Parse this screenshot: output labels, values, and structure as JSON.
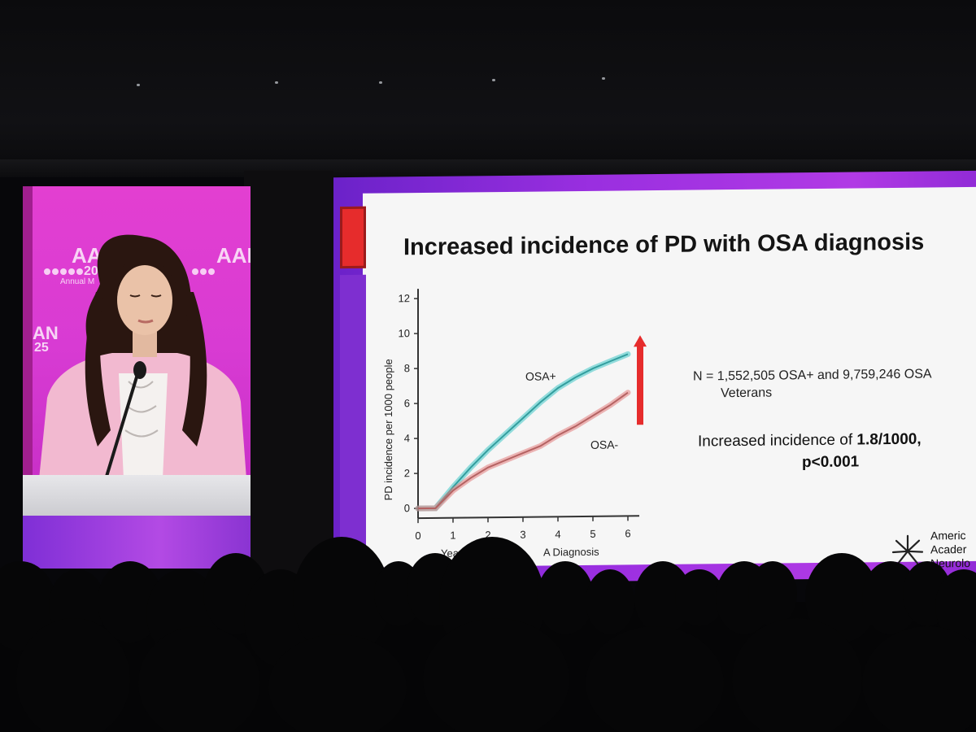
{
  "left_screen": {
    "logo_text": "AAN",
    "logo_text_2": "AAN",
    "logo_sub": "Annual M",
    "logo_year": "20",
    "side_text": "AN",
    "side_year": "25"
  },
  "slide": {
    "title": "Increased incidence of PD with OSA diagnosis",
    "info_line": "N = 1,552,505 OSA+ and 9,759,246 OSA",
    "info_line2": "Veterans",
    "incidence_prefix": "Increased incidence of ",
    "incidence_value": "1.8/1000,",
    "p_value": "p<0.001",
    "logo_lines": [
      "Americ",
      "Acader",
      "Neurolo"
    ]
  },
  "chart_data": {
    "type": "line",
    "ylabel": "PD incidence per 1000 people",
    "xlabel": "Years from OSA Diagnosis",
    "xlabel_visible": [
      "Yea",
      "A Diagnosis"
    ],
    "x_ticks": [
      "0",
      "1",
      "2",
      "3",
      "4",
      "5",
      "6"
    ],
    "y_ticks": [
      "0",
      "2",
      "4",
      "6",
      "8",
      "10",
      "12"
    ],
    "xlim": [
      0,
      6
    ],
    "ylim": [
      0,
      12
    ],
    "series": [
      {
        "name": "OSA+",
        "color": "#3fc6c6",
        "x": [
          0,
          0.5,
          1,
          1.5,
          2,
          2.5,
          3,
          3.5,
          4,
          4.5,
          5,
          5.5,
          6
        ],
        "y": [
          0,
          0,
          1.2,
          2.3,
          3.3,
          4.2,
          5.1,
          6.0,
          6.8,
          7.4,
          7.9,
          8.3,
          8.7
        ]
      },
      {
        "name": "OSA-",
        "color": "#e27b7b",
        "x": [
          0,
          0.5,
          1,
          1.5,
          2,
          2.5,
          3,
          3.5,
          4,
          4.5,
          5,
          5.5,
          6
        ],
        "y": [
          0,
          0,
          1.0,
          1.7,
          2.3,
          2.7,
          3.1,
          3.5,
          4.1,
          4.6,
          5.2,
          5.8,
          6.5
        ]
      }
    ],
    "annotation_arrow_color": "#e62c2c"
  }
}
